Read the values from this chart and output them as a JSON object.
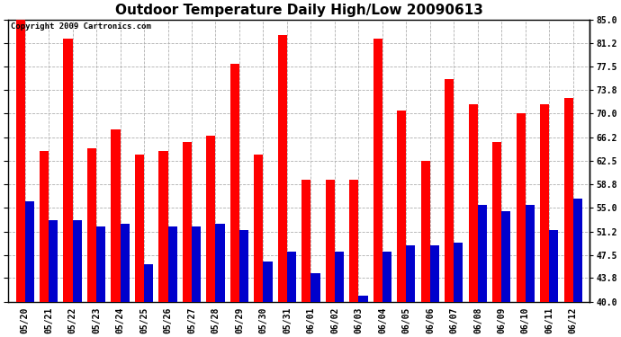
{
  "title": "Outdoor Temperature Daily High/Low 20090613",
  "copyright": "Copyright 2009 Cartronics.com",
  "dates": [
    "05/20",
    "05/21",
    "05/22",
    "05/23",
    "05/24",
    "05/25",
    "05/26",
    "05/27",
    "05/28",
    "05/29",
    "05/30",
    "05/31",
    "06/01",
    "06/02",
    "06/03",
    "06/04",
    "06/05",
    "06/06",
    "06/07",
    "06/08",
    "06/09",
    "06/10",
    "06/11",
    "06/12"
  ],
  "highs": [
    85.0,
    64.0,
    82.0,
    64.5,
    67.5,
    63.5,
    64.0,
    65.5,
    66.5,
    78.0,
    63.5,
    82.5,
    59.5,
    59.5,
    59.5,
    82.0,
    70.5,
    62.5,
    75.5,
    71.5,
    65.5,
    70.0,
    71.5,
    72.5
  ],
  "lows": [
    56.0,
    53.0,
    53.0,
    52.0,
    52.5,
    46.0,
    52.0,
    52.0,
    52.5,
    51.5,
    46.5,
    48.0,
    44.5,
    48.0,
    41.0,
    48.0,
    49.0,
    49.0,
    49.5,
    55.5,
    54.5,
    55.5,
    51.5,
    56.5
  ],
  "high_color": "#ff0000",
  "low_color": "#0000cc",
  "bg_color": "#ffffff",
  "plot_bg_color": "#ffffff",
  "grid_color": "#b0b0b0",
  "ylim_min": 40.0,
  "ylim_max": 85.0,
  "yticks": [
    40.0,
    43.8,
    47.5,
    51.2,
    55.0,
    58.8,
    62.5,
    66.2,
    70.0,
    73.8,
    77.5,
    81.2,
    85.0
  ],
  "bar_width": 0.38,
  "title_fontsize": 11,
  "tick_fontsize": 7,
  "copyright_fontsize": 6.5
}
